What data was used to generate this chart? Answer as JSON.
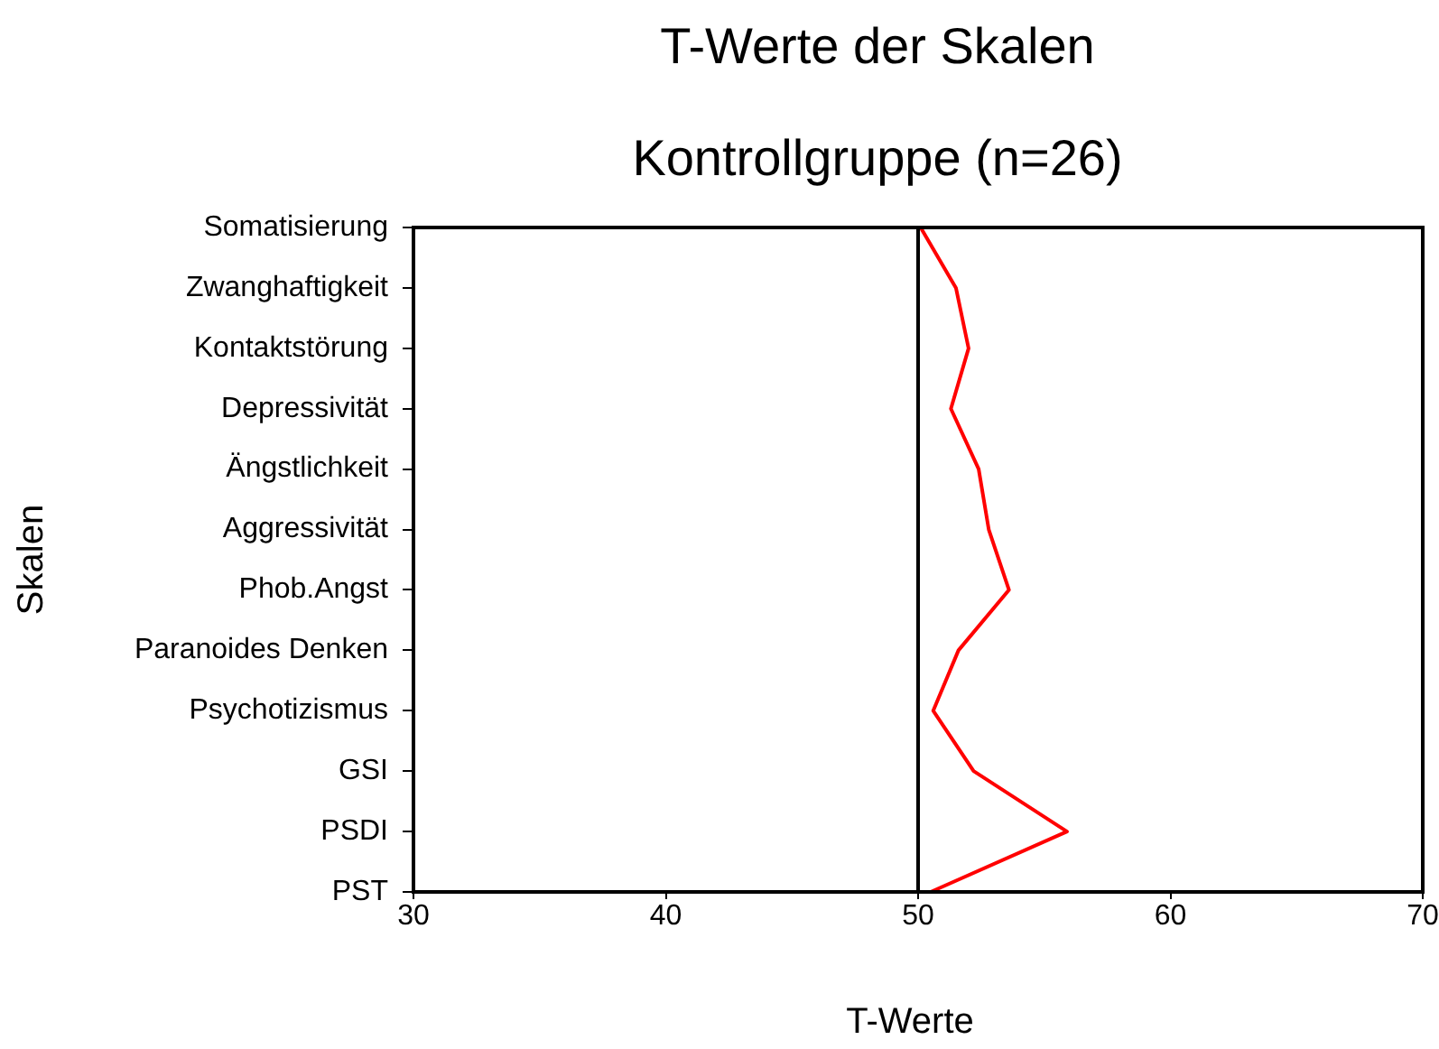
{
  "chart_data": {
    "type": "line",
    "orientation": "horizontal",
    "title": "T-Werte der Skalen",
    "subtitle": "Kontrollgruppe (n=26)",
    "xlabel": "T-Werte",
    "ylabel": "Skalen",
    "categories": [
      "Somatisierung",
      "Zwanghaftigkeit",
      "Kontaktstörung",
      "Depressivität",
      "Ängstlichkeit",
      "Aggressivität",
      "Phob.Angst",
      "Paranoides Denken",
      "Psychotizismus",
      "GSI",
      "PSDI",
      "PST"
    ],
    "series": [
      {
        "color": "#ff0000",
        "values": [
          50.1,
          51.5,
          52.0,
          51.3,
          52.4,
          52.8,
          53.6,
          51.6,
          50.6,
          52.2,
          55.9,
          50.5
        ]
      }
    ],
    "xlim": [
      30,
      70
    ],
    "xticks": [
      30,
      40,
      50,
      60,
      70
    ],
    "ref_lines": [
      {
        "axis": "x",
        "value": 50,
        "color": "#000000"
      }
    ],
    "grid": false,
    "legend": false,
    "marker": "none",
    "line_style": "solid"
  }
}
